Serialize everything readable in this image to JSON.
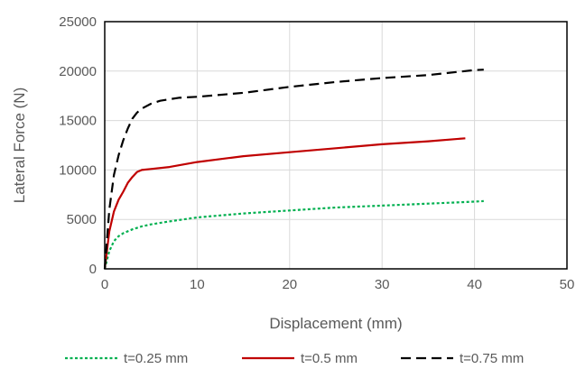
{
  "chart_data": {
    "type": "line",
    "title": "",
    "xlabel": "Displacement (mm)",
    "ylabel": "Lateral Force (N)",
    "xlim": [
      0,
      50
    ],
    "ylim": [
      0,
      25000
    ],
    "xticks": [
      0,
      10,
      20,
      30,
      40,
      50
    ],
    "yticks": [
      0,
      5000,
      10000,
      15000,
      20000,
      25000
    ],
    "grid": true,
    "legend_position": "bottom",
    "series": [
      {
        "name": "t=0.25 mm",
        "color": "#00b050",
        "style": "dotted",
        "x": [
          0,
          0.5,
          1,
          1.5,
          2,
          3,
          4,
          5,
          7,
          10,
          15,
          20,
          25,
          30,
          35,
          40,
          41
        ],
        "y": [
          0,
          1800,
          2800,
          3300,
          3600,
          4000,
          4300,
          4500,
          4800,
          5200,
          5600,
          5900,
          6200,
          6400,
          6600,
          6800,
          6850
        ]
      },
      {
        "name": "t=0.5 mm",
        "color": "#c00000",
        "style": "solid",
        "x": [
          0,
          0.5,
          1,
          1.5,
          2,
          2.5,
          3,
          3.5,
          4,
          5,
          7,
          10,
          15,
          20,
          25,
          30,
          35,
          39
        ],
        "y": [
          0,
          3800,
          5800,
          7000,
          7800,
          8700,
          9300,
          9800,
          10000,
          10100,
          10300,
          10800,
          11400,
          11800,
          12200,
          12600,
          12900,
          13200
        ]
      },
      {
        "name": "t=0.75 mm",
        "color": "#000000",
        "style": "dashed",
        "x": [
          0,
          0.5,
          1,
          1.5,
          2,
          2.5,
          3,
          3.5,
          4,
          5,
          6,
          8,
          10,
          15,
          20,
          25,
          30,
          35,
          40,
          41
        ],
        "y": [
          0,
          6000,
          9500,
          11500,
          13000,
          14200,
          15200,
          15800,
          16200,
          16700,
          17000,
          17300,
          17400,
          17800,
          18400,
          18900,
          19300,
          19600,
          20100,
          20150
        ]
      }
    ]
  }
}
